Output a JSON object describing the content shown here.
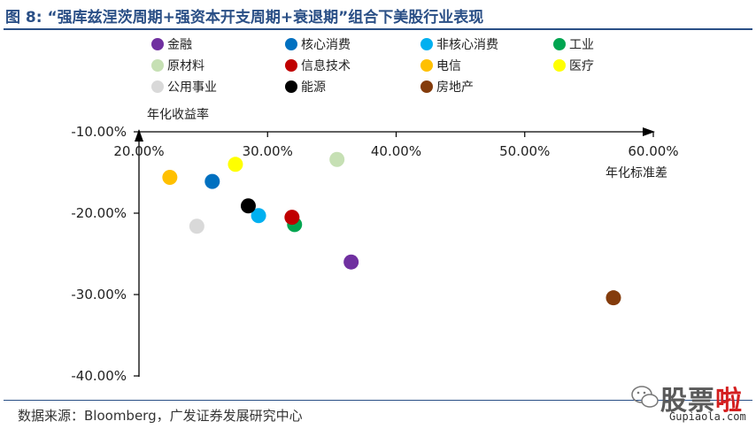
{
  "title": "图 8: “强库兹涅茨周期+强资本开支周期+衰退期”组合下美股行业表现",
  "source": "数据来源：Bloomberg，广发证券发展研究中心",
  "watermark": {
    "brand_main": "股票",
    "brand_accent": "啦",
    "url": "Gupiaola.com"
  },
  "chart_data": {
    "type": "scatter",
    "title": "",
    "xlabel": "年化标准差",
    "ylabel": "年化收益率",
    "xlim": [
      0.2,
      0.6
    ],
    "ylim": [
      -0.4,
      -0.1
    ],
    "x_ticks": [
      "20.00%",
      "30.00%",
      "40.00%",
      "50.00%",
      "60.00%"
    ],
    "y_ticks": [
      "-10.00%",
      "-20.00%",
      "-30.00%",
      "-40.00%"
    ],
    "x_tick_values": [
      0.2,
      0.3,
      0.4,
      0.5,
      0.6
    ],
    "y_tick_values": [
      -0.1,
      -0.2,
      -0.3,
      -0.4
    ],
    "grid": false,
    "legend_position": "top",
    "series": [
      {
        "name": "金融",
        "color": "#7030a0",
        "x": 0.365,
        "y": -0.26
      },
      {
        "name": "核心消费",
        "color": "#0070c0",
        "x": 0.257,
        "y": -0.161
      },
      {
        "name": "非核心消费",
        "color": "#00b0f0",
        "x": 0.293,
        "y": -0.203
      },
      {
        "name": "工业",
        "color": "#00a550",
        "x": 0.321,
        "y": -0.214
      },
      {
        "name": "原材料",
        "color": "#c6e0b4",
        "x": 0.354,
        "y": -0.134
      },
      {
        "name": "信息技术",
        "color": "#c00000",
        "x": 0.319,
        "y": -0.205
      },
      {
        "name": "电信",
        "color": "#ffc000",
        "x": 0.224,
        "y": -0.156
      },
      {
        "name": "医疗",
        "color": "#ffff00",
        "x": 0.275,
        "y": -0.14
      },
      {
        "name": "公用事业",
        "color": "#d9d9d9",
        "x": 0.245,
        "y": -0.216
      },
      {
        "name": "能源",
        "color": "#000000",
        "x": 0.285,
        "y": -0.191
      },
      {
        "name": "房地产",
        "color": "#843c0c",
        "x": 0.569,
        "y": -0.304
      }
    ]
  }
}
